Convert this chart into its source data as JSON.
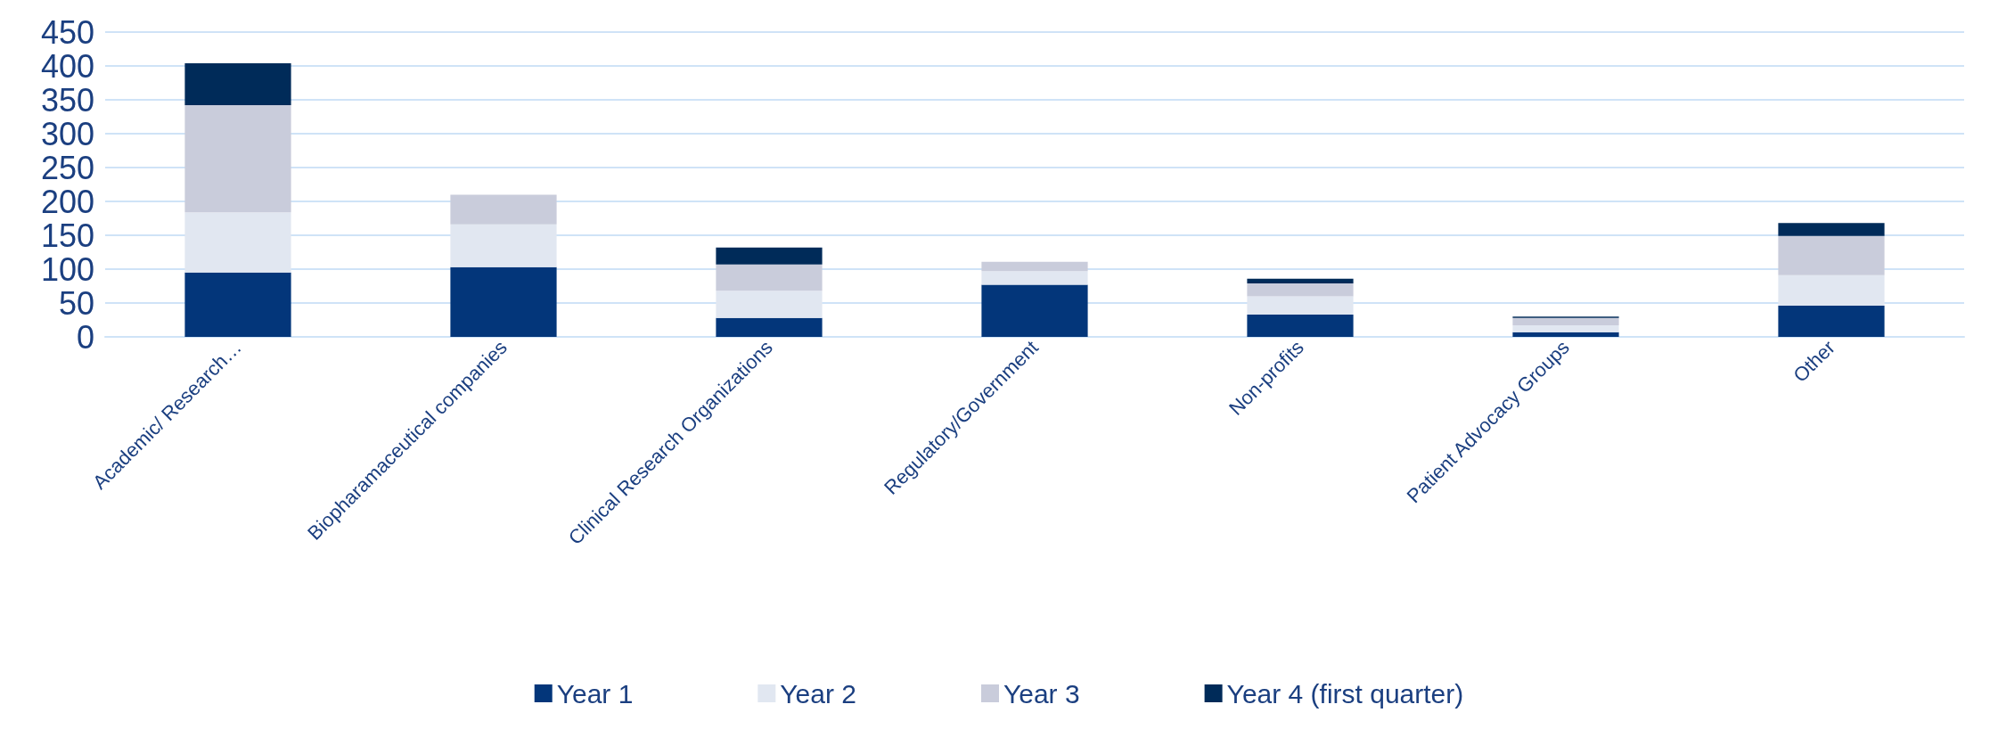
{
  "chart_data": {
    "type": "bar",
    "stacked": true,
    "categories": [
      "Academic/ Research…",
      "Biopharamaceutical companies",
      "Clinical Research Organizations",
      "Regulatory/Government",
      "Non-profits",
      "Patient Advocacy Groups",
      "Other"
    ],
    "series": [
      {
        "name": "Year 1",
        "color": "#03367a",
        "values": [
          95,
          103,
          28,
          77,
          33,
          7,
          46
        ]
      },
      {
        "name": "Year 2",
        "color": "#e1e7f1",
        "values": [
          89,
          63,
          40,
          20,
          27,
          10,
          45
        ]
      },
      {
        "name": "Year 3",
        "color": "#c9ccdb",
        "values": [
          158,
          44,
          39,
          14,
          19,
          11,
          58
        ]
      },
      {
        "name": "Year 4 (first quarter)",
        "color": "#002b59",
        "values": [
          62,
          0,
          25,
          0,
          7,
          2,
          19
        ]
      }
    ],
    "ylim": [
      0,
      450
    ],
    "yticks": [
      0,
      50,
      100,
      150,
      200,
      250,
      300,
      350,
      400,
      450
    ],
    "grid": "y",
    "legend": "bottom"
  }
}
